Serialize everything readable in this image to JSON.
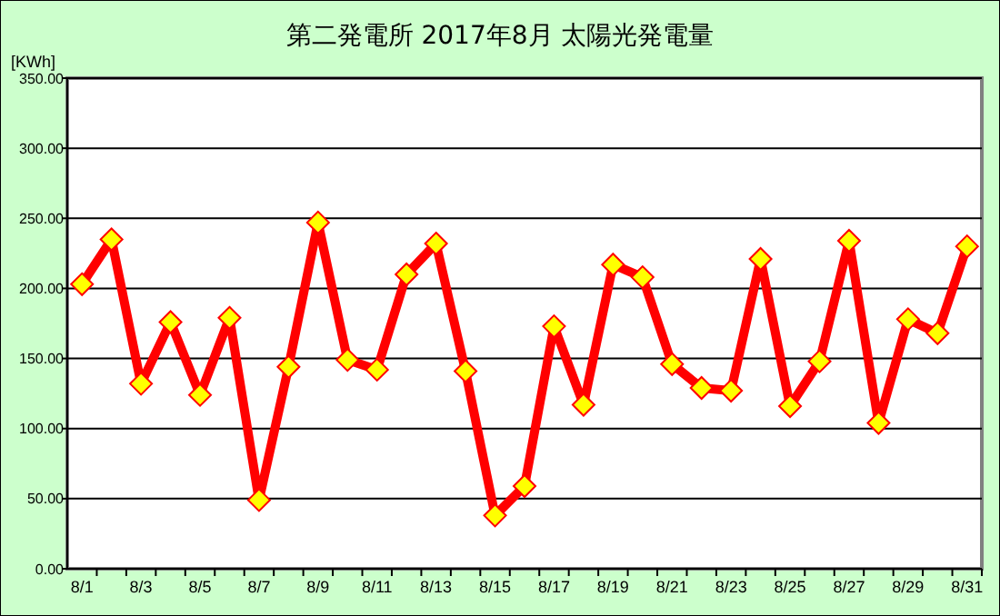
{
  "chart_data": {
    "type": "line",
    "title": "第二発電所  2017年8月 太陽光発電量",
    "ylabel": "[KWh]",
    "categories": [
      "8/1",
      null,
      "8/3",
      null,
      "8/5",
      null,
      "8/7",
      null,
      "8/9",
      null,
      "8/11",
      null,
      "8/13",
      null,
      "8/15",
      null,
      "8/17",
      null,
      "8/19",
      null,
      "8/21",
      null,
      "8/23",
      null,
      "8/25",
      null,
      "8/27",
      null,
      "8/29",
      null,
      "8/31"
    ],
    "series": [
      {
        "color": "#ff0000",
        "values": [
          203,
          235,
          132,
          176,
          124,
          179,
          49,
          144,
          247,
          149,
          142,
          210,
          232,
          141,
          38,
          59,
          173,
          117,
          217,
          208,
          146,
          129,
          127,
          221,
          116,
          148,
          234,
          104,
          178,
          168,
          230
        ]
      }
    ],
    "ylim": [
      0,
      350
    ],
    "yticks": [
      {
        "value": 0,
        "label": "0.00"
      },
      {
        "value": 50,
        "label": "50.00"
      },
      {
        "value": 100,
        "label": "100.00"
      },
      {
        "value": 150,
        "label": "150.00"
      },
      {
        "value": 200,
        "label": "200.00"
      },
      {
        "value": 250,
        "label": "250.00"
      },
      {
        "value": 300,
        "label": "300.00"
      },
      {
        "value": 350,
        "label": "350.00"
      }
    ],
    "grid": "y",
    "marker": "diamond",
    "line_style": "solid"
  }
}
